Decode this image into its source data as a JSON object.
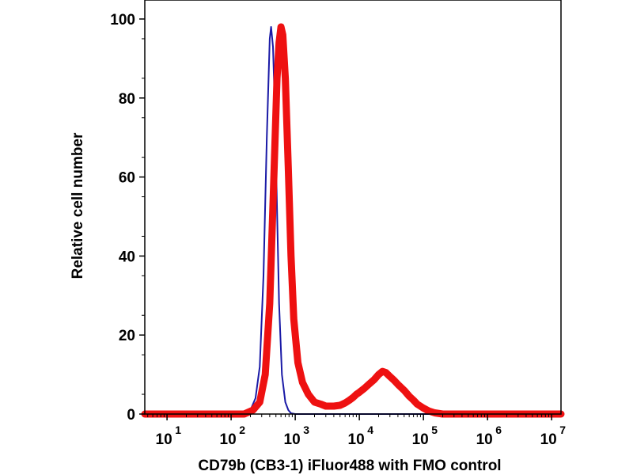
{
  "chart_data": {
    "type": "line",
    "xlabel": "CD79b (CB3-1) iFluor488 with FMO control",
    "ylabel": "Relative cell number",
    "xscale": "log",
    "xlim": [
      4.5,
      14000000
    ],
    "ylim": [
      0,
      100
    ],
    "grid": false,
    "legend": "none",
    "x_ticks": [
      {
        "base": "10",
        "exp": "1",
        "value": 10
      },
      {
        "base": "10",
        "exp": "2",
        "value": 100
      },
      {
        "base": "10",
        "exp": "3",
        "value": 1000
      },
      {
        "base": "10",
        "exp": "4",
        "value": 10000
      },
      {
        "base": "10",
        "exp": "5",
        "value": 100000
      },
      {
        "base": "10",
        "exp": "6",
        "value": 1000000
      },
      {
        "base": "10",
        "exp": "7",
        "value": 10000000
      }
    ],
    "y_ticks": [
      {
        "label": "0",
        "value": 0
      },
      {
        "label": "20",
        "value": 20
      },
      {
        "label": "40",
        "value": 40
      },
      {
        "label": "60",
        "value": 60
      },
      {
        "label": "80",
        "value": 80
      },
      {
        "label": "100",
        "value": 100
      }
    ],
    "series": [
      {
        "color": "#1a1aa6",
        "x": [
          4.5,
          150,
          200,
          240,
          280,
          320,
          360,
          400,
          420,
          450,
          480,
          520,
          560,
          620,
          700,
          780,
          860,
          1000,
          14000000
        ],
        "y": [
          0,
          0,
          1,
          4,
          12,
          35,
          70,
          95,
          98,
          93,
          78,
          52,
          28,
          10,
          3,
          1,
          0.2,
          0,
          0
        ]
      },
      {
        "color": "#ee1111",
        "x": [
          4.5,
          160,
          220,
          280,
          340,
          400,
          460,
          520,
          560,
          600,
          640,
          700,
          780,
          860,
          950,
          1100,
          1300,
          1600,
          2000,
          2500,
          3000,
          4000,
          5000,
          6000,
          7000,
          8000,
          9000,
          10000,
          12000,
          14000,
          17000,
          20000,
          23000,
          26000,
          30000,
          35000,
          40000,
          50000,
          60000,
          70000,
          80000,
          100000,
          120000,
          150000,
          200000,
          300000,
          14000000
        ],
        "y": [
          0,
          0,
          1,
          3,
          10,
          28,
          58,
          85,
          94,
          98,
          96,
          85,
          62,
          40,
          24,
          13,
          8,
          5,
          3,
          2.5,
          2,
          2,
          2.2,
          2.8,
          3.5,
          4.2,
          5,
          5.5,
          6.5,
          7.5,
          8.7,
          10,
          10.8,
          10.5,
          9.5,
          8.5,
          7.5,
          6,
          4.5,
          3.5,
          2.5,
          1.5,
          0.8,
          0.3,
          0,
          0,
          0
        ]
      }
    ]
  }
}
